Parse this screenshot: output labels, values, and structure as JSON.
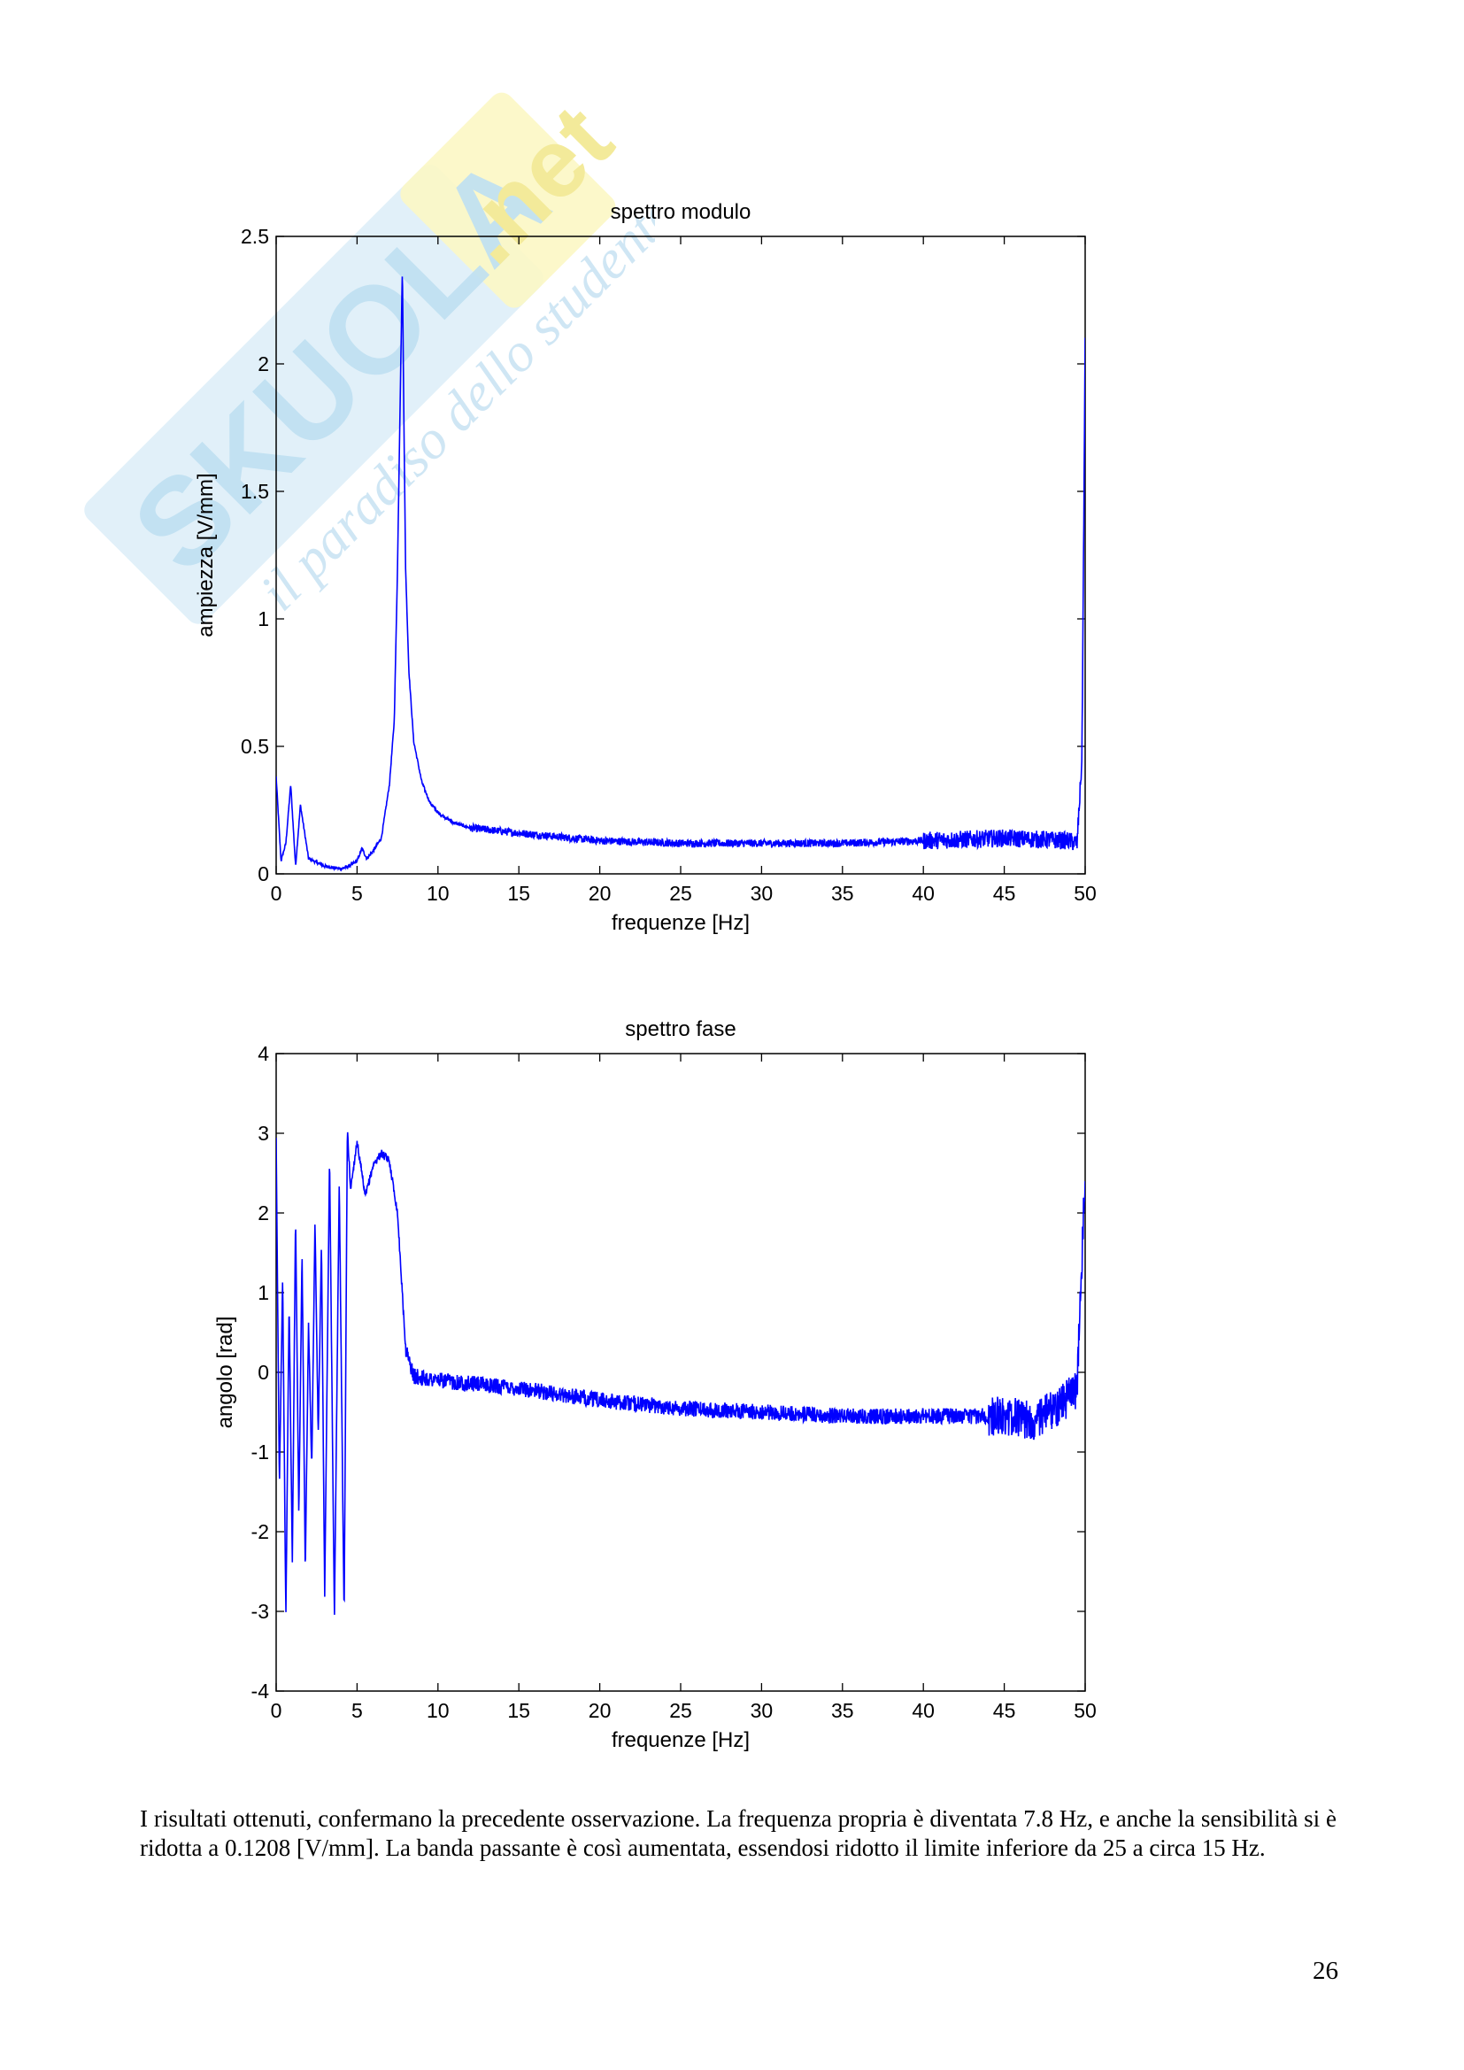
{
  "watermark": {
    "brand": "SKUOLA.net",
    "tagline": "il paradiso dello studente",
    "colors": {
      "blue": "#cfe6f4",
      "yellow": "#fbf5c0"
    }
  },
  "chart_data": [
    {
      "type": "line",
      "title": "spettro modulo",
      "xlabel": "frequenze [Hz]",
      "ylabel": "ampiezza [V/mm]",
      "xlim": [
        0,
        50
      ],
      "ylim": [
        0,
        2.5
      ],
      "xticks": [
        "0",
        "5",
        "10",
        "15",
        "20",
        "25",
        "30",
        "35",
        "40",
        "45",
        "50"
      ],
      "yticks": [
        "0",
        "0.5",
        "1",
        "1.5",
        "2",
        "2.5"
      ],
      "grid": false,
      "line_color": "#0000ff",
      "series": [
        {
          "x": [
            0,
            0.3,
            0.6,
            0.9,
            1.2,
            1.5,
            2,
            3,
            4,
            4.5,
            5,
            5.3,
            5.6,
            6,
            6.5,
            7,
            7.3,
            7.5,
            7.65,
            7.8,
            7.9,
            8.0,
            8.2,
            8.5,
            9,
            9.5,
            10,
            11,
            12,
            15,
            20,
            25,
            30,
            35,
            40,
            45,
            49,
            49.5,
            49.8,
            50
          ],
          "y": [
            0.38,
            0.05,
            0.12,
            0.35,
            0.03,
            0.27,
            0.06,
            0.03,
            0.02,
            0.03,
            0.05,
            0.1,
            0.06,
            0.09,
            0.14,
            0.35,
            0.6,
            1.2,
            1.8,
            2.38,
            1.75,
            1.2,
            0.8,
            0.52,
            0.36,
            0.28,
            0.24,
            0.2,
            0.18,
            0.16,
            0.13,
            0.12,
            0.12,
            0.12,
            0.13,
            0.14,
            0.13,
            0.12,
            0.45,
            2.08
          ]
        }
      ]
    },
    {
      "type": "line",
      "title": "spettro fase",
      "xlabel": "frequenze [Hz]",
      "ylabel": "angolo [rad]",
      "xlim": [
        0,
        50
      ],
      "ylim": [
        -4,
        4
      ],
      "xticks": [
        "0",
        "5",
        "10",
        "15",
        "20",
        "25",
        "30",
        "35",
        "40",
        "45",
        "50"
      ],
      "yticks": [
        "-4",
        "-3",
        "-2",
        "-1",
        "0",
        "1",
        "2",
        "3",
        "4"
      ],
      "grid": false,
      "line_color": "#0000ff",
      "series": [
        {
          "x": [
            0,
            0.2,
            0.4,
            0.6,
            0.8,
            1.0,
            1.2,
            1.4,
            1.6,
            1.8,
            2.0,
            2.2,
            2.4,
            2.6,
            2.8,
            3.0,
            3.3,
            3.6,
            3.9,
            4.2,
            4.4,
            4.6,
            5,
            5.5,
            6,
            6.5,
            7,
            7.5,
            8,
            8.5,
            10,
            15,
            20,
            25,
            30,
            35,
            40,
            45,
            47,
            48.5,
            49.5,
            50
          ],
          "y": [
            2.9,
            -1.4,
            1.2,
            -3.1,
            0.9,
            -2.4,
            2.0,
            -1.8,
            1.5,
            -2.5,
            0.6,
            -1.2,
            1.9,
            -0.8,
            1.6,
            -2.8,
            2.7,
            -3.1,
            2.4,
            -3.1,
            3.05,
            2.3,
            2.9,
            2.2,
            2.6,
            2.75,
            2.65,
            2.0,
            0.3,
            -0.05,
            -0.1,
            -0.2,
            -0.35,
            -0.45,
            -0.5,
            -0.55,
            -0.55,
            -0.55,
            -0.6,
            -0.4,
            -0.2,
            2.55
          ]
        }
      ]
    }
  ],
  "paragraph": "I risultati ottenuti, confermano la precedente osservazione. La frequenza propria è diventata 7.8 Hz, e anche la sensibilità si è ridotta a 0.1208 [V/mm]. La banda passante è così aumentata, essendosi ridotto il limite inferiore da 25 a circa 15 Hz.",
  "page_number": "26"
}
